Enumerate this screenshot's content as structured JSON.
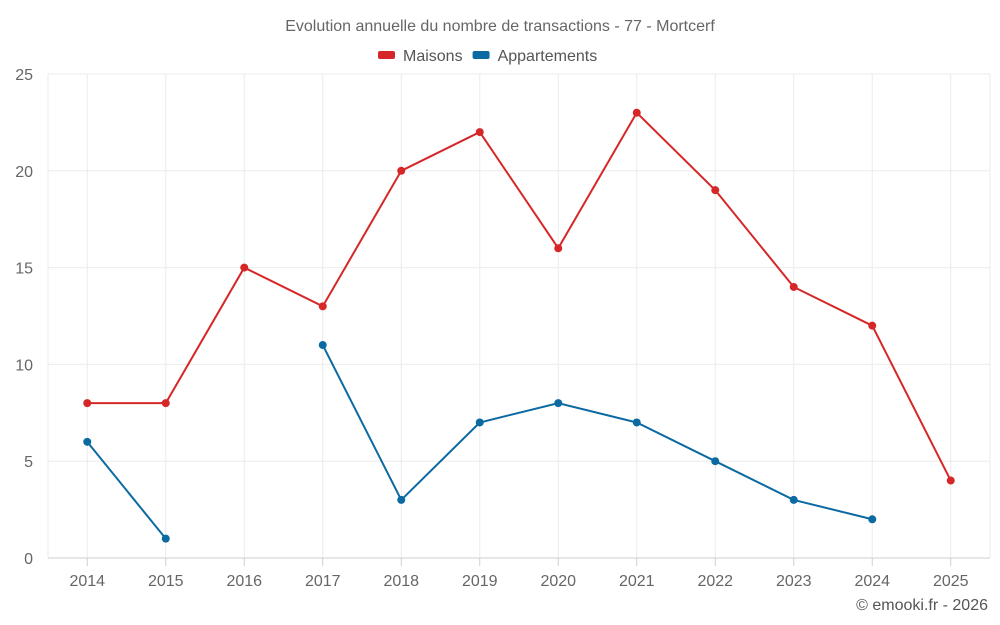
{
  "chart_data": {
    "type": "line",
    "title": "Evolution annuelle du nombre de transactions - 77 - Mortcerf",
    "categories": [
      "2014",
      "2015",
      "2016",
      "2017",
      "2018",
      "2019",
      "2020",
      "2021",
      "2022",
      "2023",
      "2024",
      "2025"
    ],
    "series": [
      {
        "name": "Maisons",
        "color": "#d62728",
        "values": [
          8,
          8,
          15,
          13,
          20,
          22,
          16,
          23,
          19,
          14,
          12,
          4
        ]
      },
      {
        "name": "Appartements",
        "color": "#0b6aa2",
        "values": [
          6,
          1,
          null,
          11,
          3,
          7,
          8,
          7,
          5,
          3,
          2,
          null
        ]
      }
    ],
    "ylim": [
      0,
      25
    ],
    "yticks": [
      0,
      5,
      10,
      15,
      20,
      25
    ],
    "xlabel": "",
    "ylabel": "",
    "grid": true,
    "legend": "top-center"
  },
  "credit": "© emooki.fr - 2026"
}
